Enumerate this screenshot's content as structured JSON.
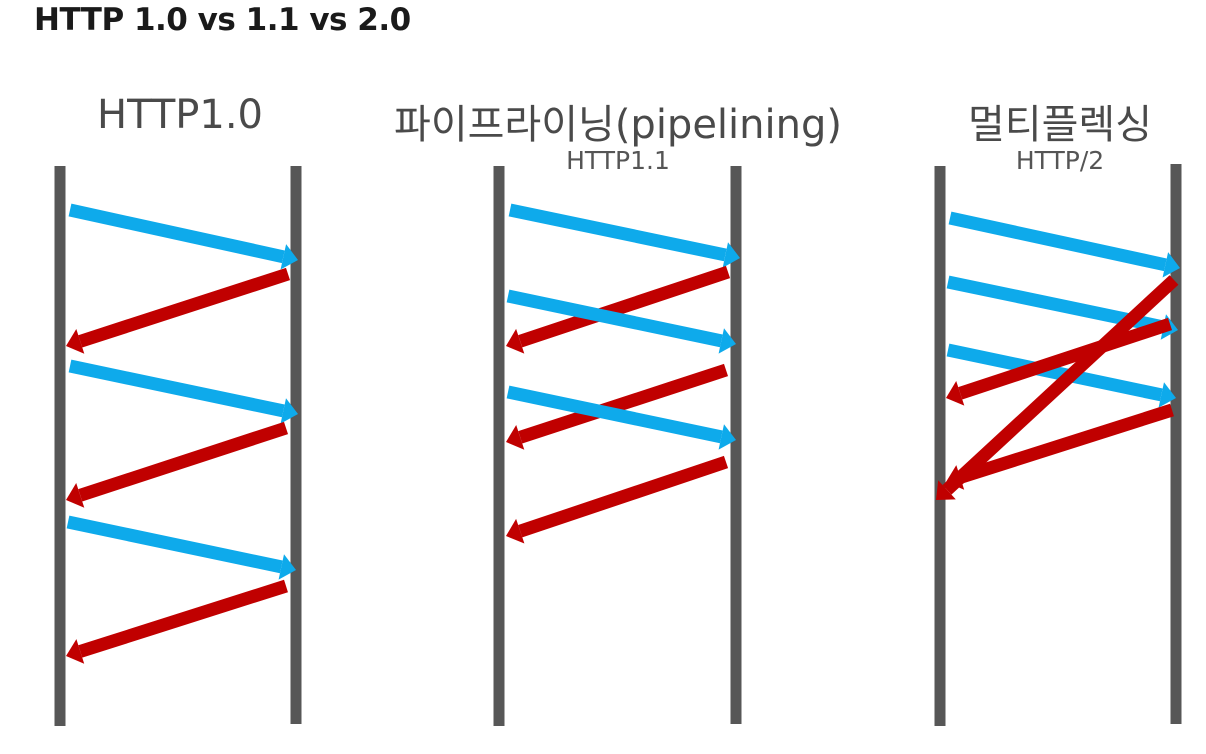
{
  "title": "HTTP 1.0 vs 1.1 vs 2.0",
  "colors": {
    "timeline": "#575757",
    "request": "#0eaaeb",
    "response": "#c00000",
    "title_text": "#1a1a1a",
    "label_text": "#4a4a4a"
  },
  "panels": [
    {
      "id": "http10",
      "label": "HTTP1.0",
      "sublabel": "",
      "messages": [
        {
          "kind": "request",
          "direction": "client-to-server"
        },
        {
          "kind": "response",
          "direction": "server-to-client"
        },
        {
          "kind": "request",
          "direction": "client-to-server"
        },
        {
          "kind": "response",
          "direction": "server-to-client"
        },
        {
          "kind": "request",
          "direction": "client-to-server"
        },
        {
          "kind": "response",
          "direction": "server-to-client"
        }
      ]
    },
    {
      "id": "pipelining",
      "label": "파이프라이닝(pipelining)",
      "sublabel": "HTTP1.1",
      "messages": [
        {
          "kind": "request",
          "direction": "client-to-server"
        },
        {
          "kind": "response",
          "direction": "server-to-client"
        },
        {
          "kind": "request",
          "direction": "client-to-server"
        },
        {
          "kind": "response",
          "direction": "server-to-client"
        },
        {
          "kind": "request",
          "direction": "client-to-server"
        },
        {
          "kind": "response",
          "direction": "server-to-client"
        }
      ]
    },
    {
      "id": "multiplexing",
      "label": "멀티플렉싱",
      "sublabel": "HTTP/2",
      "messages": [
        {
          "kind": "request",
          "direction": "client-to-server"
        },
        {
          "kind": "request",
          "direction": "client-to-server"
        },
        {
          "kind": "request",
          "direction": "client-to-server"
        },
        {
          "kind": "response",
          "direction": "server-to-client"
        },
        {
          "kind": "response",
          "direction": "server-to-client"
        },
        {
          "kind": "response",
          "direction": "server-to-client"
        }
      ]
    }
  ]
}
